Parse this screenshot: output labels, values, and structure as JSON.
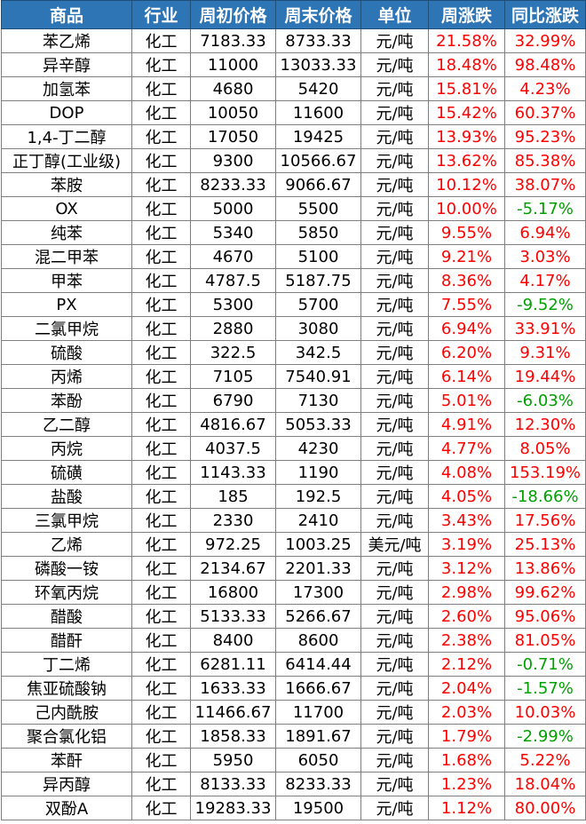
{
  "headers": [
    "商品",
    "行业",
    "周初价格",
    "周末价格",
    "单位",
    "周涨跌",
    "同比涨跌"
  ],
  "colors": {
    "header_bg": "#2e75b6",
    "up": "#ff0000",
    "down": "#00a000"
  },
  "rows": [
    [
      "苯乙烯",
      "化工",
      "7183.33",
      "8733.33",
      "元/吨",
      "21.58%",
      "32.99%"
    ],
    [
      "异辛醇",
      "化工",
      "11000",
      "13033.33",
      "元/吨",
      "18.48%",
      "98.48%"
    ],
    [
      "加氢苯",
      "化工",
      "4680",
      "5420",
      "元/吨",
      "15.81%",
      "4.23%"
    ],
    [
      "DOP",
      "化工",
      "10050",
      "11600",
      "元/吨",
      "15.42%",
      "60.37%"
    ],
    [
      "1,4-丁二醇",
      "化工",
      "17050",
      "19425",
      "元/吨",
      "13.93%",
      "95.23%"
    ],
    [
      "正丁醇(工业级)",
      "化工",
      "9300",
      "10566.67",
      "元/吨",
      "13.62%",
      "85.38%"
    ],
    [
      "苯胺",
      "化工",
      "8233.33",
      "9066.67",
      "元/吨",
      "10.12%",
      "38.07%"
    ],
    [
      "OX",
      "化工",
      "5000",
      "5500",
      "元/吨",
      "10.00%",
      "-5.17%"
    ],
    [
      "纯苯",
      "化工",
      "5340",
      "5850",
      "元/吨",
      "9.55%",
      "6.94%"
    ],
    [
      "混二甲苯",
      "化工",
      "4670",
      "5100",
      "元/吨",
      "9.21%",
      "3.03%"
    ],
    [
      "甲苯",
      "化工",
      "4787.5",
      "5187.75",
      "元/吨",
      "8.36%",
      "4.17%"
    ],
    [
      "PX",
      "化工",
      "5300",
      "5700",
      "元/吨",
      "7.55%",
      "-9.52%"
    ],
    [
      "二氯甲烷",
      "化工",
      "2880",
      "3080",
      "元/吨",
      "6.94%",
      "33.91%"
    ],
    [
      "硫酸",
      "化工",
      "322.5",
      "342.5",
      "元/吨",
      "6.20%",
      "9.31%"
    ],
    [
      "丙烯",
      "化工",
      "7105",
      "7540.91",
      "元/吨",
      "6.14%",
      "19.44%"
    ],
    [
      "苯酚",
      "化工",
      "6790",
      "7130",
      "元/吨",
      "5.01%",
      "-6.03%"
    ],
    [
      "乙二醇",
      "化工",
      "4816.67",
      "5053.33",
      "元/吨",
      "4.91%",
      "12.30%"
    ],
    [
      "丙烷",
      "化工",
      "4037.5",
      "4230",
      "元/吨",
      "4.77%",
      "8.05%"
    ],
    [
      "硫磺",
      "化工",
      "1143.33",
      "1190",
      "元/吨",
      "4.08%",
      "153.19%"
    ],
    [
      "盐酸",
      "化工",
      "185",
      "192.5",
      "元/吨",
      "4.05%",
      "-18.66%"
    ],
    [
      "三氯甲烷",
      "化工",
      "2330",
      "2410",
      "元/吨",
      "3.43%",
      "17.56%"
    ],
    [
      "乙烯",
      "化工",
      "972.25",
      "1003.25",
      "美元/吨",
      "3.19%",
      "25.13%"
    ],
    [
      "磷酸一铵",
      "化工",
      "2134.67",
      "2201.33",
      "元/吨",
      "3.12%",
      "13.86%"
    ],
    [
      "环氧丙烷",
      "化工",
      "16800",
      "17300",
      "元/吨",
      "2.98%",
      "99.62%"
    ],
    [
      "醋酸",
      "化工",
      "5133.33",
      "5266.67",
      "元/吨",
      "2.60%",
      "95.06%"
    ],
    [
      "醋酐",
      "化工",
      "8400",
      "8600",
      "元/吨",
      "2.38%",
      "81.05%"
    ],
    [
      "丁二烯",
      "化工",
      "6281.11",
      "6414.44",
      "元/吨",
      "2.12%",
      "-0.71%"
    ],
    [
      "焦亚硫酸钠",
      "化工",
      "1633.33",
      "1666.67",
      "元/吨",
      "2.04%",
      "-1.57%"
    ],
    [
      "己内酰胺",
      "化工",
      "11466.67",
      "11700",
      "元/吨",
      "2.03%",
      "10.03%"
    ],
    [
      "聚合氯化铝",
      "化工",
      "1858.33",
      "1891.67",
      "元/吨",
      "1.79%",
      "-2.99%"
    ],
    [
      "苯酐",
      "化工",
      "5950",
      "6050",
      "元/吨",
      "1.68%",
      "5.22%"
    ],
    [
      "异丙醇",
      "化工",
      "8133.33",
      "8233.33",
      "元/吨",
      "1.23%",
      "18.04%"
    ],
    [
      "双酚A",
      "化工",
      "19283.33",
      "19500",
      "元/吨",
      "1.12%",
      "80.00%"
    ]
  ]
}
